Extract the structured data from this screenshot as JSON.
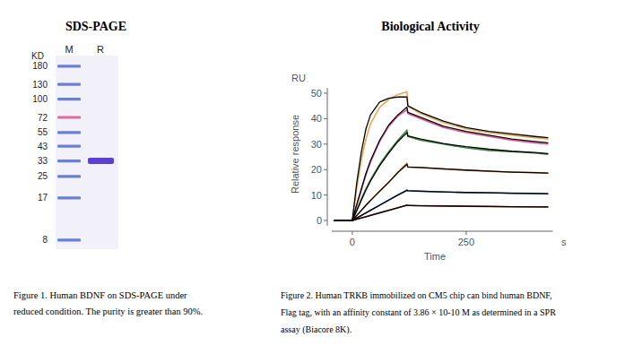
{
  "gel": {
    "title": "SDS-PAGE",
    "unit": "KD",
    "lanes": [
      "M",
      "R"
    ],
    "marker_kd": [
      180,
      130,
      100,
      72,
      55,
      43,
      33,
      25,
      17,
      8
    ],
    "marker_colors": [
      "#5a73d0",
      "#5a73d0",
      "#5a73d0",
      "#d8608e",
      "#5a73d0",
      "#5a73d0",
      "#5a73d0",
      "#5a73d0",
      "#5a73d0",
      "#5a73d0"
    ],
    "sample_band_kd": 33,
    "sample_color": "#5b3fd6",
    "kd_range": [
      6.8,
      218
    ],
    "log": true,
    "caption_lines": [
      "Figure 1. Human BDNF on SDS-PAGE under",
      "reduced condition. The purity is greater than 90%."
    ]
  },
  "chart_data": {
    "type": "line",
    "title": "Biological Activity",
    "x_label": "Time",
    "x_unit": "s",
    "y_label": "Relative response",
    "y_unit": "RU",
    "x": [
      -40,
      0,
      10,
      20,
      30,
      40,
      60,
      80,
      100,
      120,
      122,
      150,
      200,
      250,
      300,
      350,
      400,
      430
    ],
    "series": [
      {
        "color": "#e8a94c",
        "values": [
          0,
          0,
          13,
          24,
          32,
          38,
          44.5,
          47.5,
          49.5,
          50.5,
          45,
          42,
          38.5,
          36,
          34.5,
          33.5,
          32.5,
          32
        ]
      },
      {
        "color": "#e8559a",
        "values": [
          0,
          0,
          6,
          12,
          18,
          23,
          31,
          37,
          41,
          43.5,
          42,
          40,
          36.5,
          34.5,
          33,
          31.5,
          30.5,
          30
        ]
      },
      {
        "color": "#3a8a3a",
        "values": [
          0,
          0,
          4,
          8.5,
          12.5,
          16,
          22,
          27,
          31.5,
          35.5,
          33,
          31.5,
          30,
          28.5,
          27.5,
          27,
          26.5,
          26
        ]
      },
      {
        "color": "#c8782c",
        "values": [
          0,
          0,
          2,
          4,
          6,
          8,
          11.5,
          15,
          19,
          22.5,
          21,
          20.8,
          20.2,
          19.7,
          19.3,
          19,
          18.8,
          18.6
        ]
      },
      {
        "color": "#3366aa",
        "values": [
          0,
          0,
          1,
          2,
          3,
          4,
          6,
          8,
          10,
          12,
          11.7,
          11.5,
          11.2,
          11,
          10.9,
          10.7,
          10.6,
          10.5
        ]
      },
      {
        "color": "#a0302a",
        "values": [
          0,
          0,
          0.5,
          1,
          1.5,
          2,
          3,
          4,
          5,
          6,
          5.9,
          5.8,
          5.7,
          5.6,
          5.5,
          5.4,
          5.35,
          5.3
        ]
      },
      {
        "color": "#000000",
        "values": [
          0,
          0,
          15,
          27,
          36,
          41.5,
          46.5,
          48,
          48.5,
          48.5,
          45,
          42.5,
          39,
          36.5,
          35,
          34,
          33,
          32.5
        ]
      },
      {
        "color": "#000000",
        "values": [
          0,
          0,
          6.5,
          12.5,
          18.5,
          23.5,
          31.5,
          37.5,
          41.5,
          44.5,
          42.5,
          40.5,
          37,
          35,
          33.5,
          32,
          31,
          30.5
        ]
      },
      {
        "color": "#000000",
        "values": [
          0,
          0,
          4,
          8,
          12,
          15.5,
          21.5,
          26.5,
          31,
          34.5,
          33.2,
          32,
          30.2,
          29,
          28,
          27.2,
          26.7,
          26.3
        ]
      },
      {
        "color": "#000000",
        "values": [
          0,
          0,
          2,
          4,
          6,
          7.8,
          11.5,
          15,
          18.8,
          22,
          21,
          20.8,
          20.3,
          19.8,
          19.4,
          19,
          18.8,
          18.6
        ]
      },
      {
        "color": "#000000",
        "values": [
          0,
          0,
          1,
          2,
          3,
          4,
          6,
          8,
          10,
          11.8,
          11.7,
          11.5,
          11.2,
          11,
          10.9,
          10.7,
          10.6,
          10.5
        ]
      },
      {
        "color": "#000000",
        "values": [
          0,
          0,
          0.5,
          1,
          1.5,
          2,
          3,
          4,
          5,
          6,
          5.9,
          5.8,
          5.7,
          5.6,
          5.5,
          5.4,
          5.35,
          5.3
        ]
      }
    ],
    "xlim": [
      -45,
      440
    ],
    "ylim": [
      -2,
      52
    ],
    "xticks": [
      0,
      250
    ],
    "yticks": [
      0,
      10,
      20,
      30,
      40,
      50
    ],
    "grid": false,
    "caption_lines": [
      "Figure 2. Human TRKB immobilized on CM5 chip can bind human BDNF,",
      "Flag tag, with an affinity constant of 3.86 × 10-10 M as determined in a SPR",
      "assay (Biacore 8K)."
    ]
  }
}
